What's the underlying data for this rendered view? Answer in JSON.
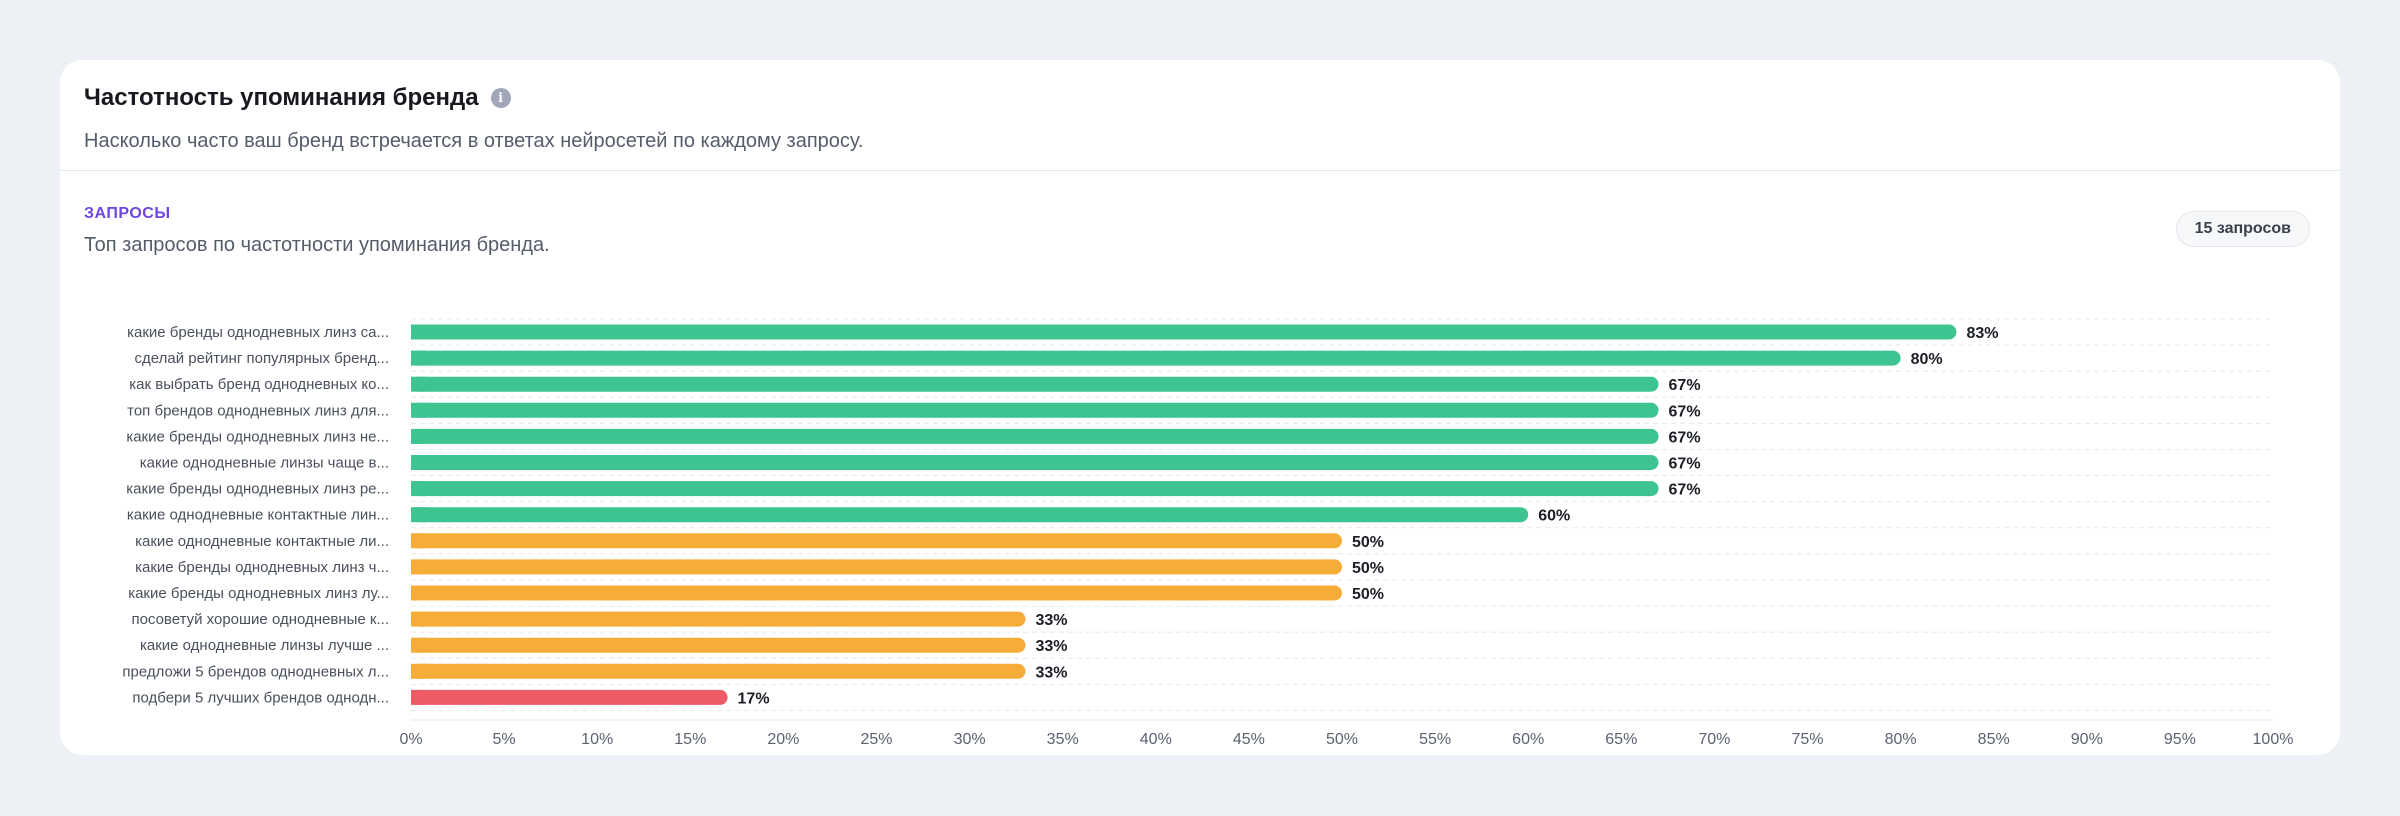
{
  "card": {
    "title": "Частотность упоминания бренда",
    "info_icon": "info-icon",
    "subtitle": "Насколько часто ваш бренд встречается в ответах нейросетей по каждому запросу."
  },
  "section": {
    "label": "ЗАПРОСЫ",
    "description": "Топ запросов по частотности упоминания бренда.",
    "count_badge": "15 запросов"
  },
  "colors": {
    "high": "#3ec491",
    "medium": "#f6ad37",
    "low": "#ee5b66",
    "accent": "#6e45e2"
  },
  "chart_data": {
    "type": "bar",
    "orientation": "horizontal",
    "categories": [
      "какие бренды однодневных линз са...",
      "сделай рейтинг популярных бренд...",
      "как выбрать бренд однодневных ко...",
      "топ брендов однодневных линз для...",
      "какие бренды однодневных линз не...",
      "какие однодневные линзы чаще в...",
      "какие бренды однодневных линз ре...",
      "какие однодневные контактные лин...",
      "какие однодневные контактные ли...",
      "какие бренды однодневных линз ч...",
      "какие бренды однодневных линз лу...",
      "посоветуй хорошие однодневные к...",
      "какие однодневные линзы лучше ...",
      "предложи 5 брендов однодневных л...",
      "подбери 5 лучших брендов однодн..."
    ],
    "values": [
      83,
      80,
      67,
      67,
      67,
      67,
      67,
      60,
      50,
      50,
      50,
      33,
      33,
      33,
      17
    ],
    "value_labels": [
      "83%",
      "80%",
      "67%",
      "67%",
      "67%",
      "67%",
      "67%",
      "60%",
      "50%",
      "50%",
      "50%",
      "33%",
      "33%",
      "33%",
      "17%"
    ],
    "bar_colors": [
      "high",
      "high",
      "high",
      "high",
      "high",
      "high",
      "high",
      "high",
      "medium",
      "medium",
      "medium",
      "medium",
      "medium",
      "medium",
      "low"
    ],
    "x_ticks": [
      "0%",
      "5%",
      "10%",
      "15%",
      "20%",
      "25%",
      "30%",
      "35%",
      "40%",
      "45%",
      "50%",
      "55%",
      "60%",
      "65%",
      "70%",
      "75%",
      "80%",
      "85%",
      "90%",
      "95%",
      "100%"
    ],
    "xlim": [
      0,
      100
    ],
    "grid": true
  }
}
